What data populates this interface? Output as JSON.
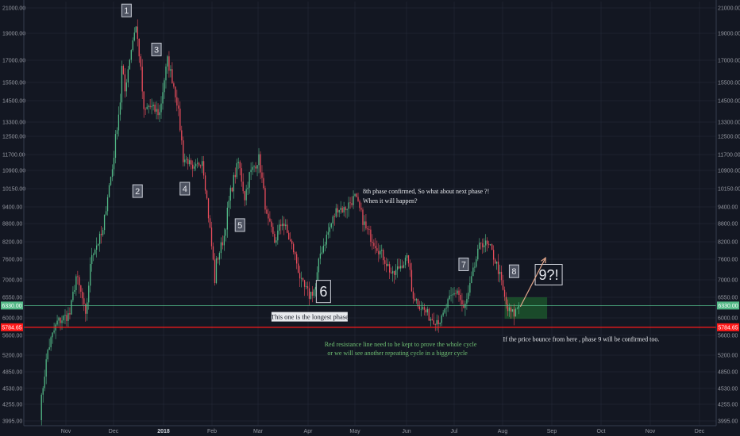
{
  "chart_data": {
    "type": "candlestick",
    "y_ticks": [
      "21000.00",
      "19000.00",
      "17000.00",
      "15500.00",
      "14500.00",
      "13300.00",
      "12500.00",
      "11700.00",
      "10900.00",
      "10150.00",
      "9400.00",
      "8800.00",
      "8200.00",
      "7600.00",
      "7000.00",
      "6550.00",
      "6000.00",
      "5600.00",
      "5200.00",
      "4850.00",
      "4530.00",
      "4255.00",
      "3995.00"
    ],
    "x_ticks": [
      {
        "label": "Nov",
        "bold": false
      },
      {
        "label": "Dec",
        "bold": false
      },
      {
        "label": "2018",
        "bold": true
      },
      {
        "label": "Feb",
        "bold": false
      },
      {
        "label": "Mar",
        "bold": false
      },
      {
        "label": "Apr",
        "bold": false
      },
      {
        "label": "May",
        "bold": false
      },
      {
        "label": "Jun",
        "bold": false
      },
      {
        "label": "Jul",
        "bold": false
      },
      {
        "label": "Aug",
        "bold": false
      },
      {
        "label": "Sep",
        "bold": false
      },
      {
        "label": "Oct",
        "bold": false
      },
      {
        "label": "Nov",
        "bold": false
      },
      {
        "label": "Dec",
        "bold": false
      }
    ],
    "price_line": {
      "value": 6330,
      "label": "6330.00",
      "color": "#53b987"
    },
    "resistance_line": {
      "value": 5784.65,
      "label": "5784.65",
      "color": "#ff1a1a"
    },
    "up_color": "#53b987",
    "down_color": "#eb4d5c",
    "anchors": [
      [
        "2017-10-17",
        4100
      ],
      [
        "2017-10-22",
        5300
      ],
      [
        "2017-10-28",
        5900
      ],
      [
        "2017-11-05",
        6100
      ],
      [
        "2017-11-09",
        7100
      ],
      [
        "2017-11-13",
        6500
      ],
      [
        "2017-11-15",
        6000
      ],
      [
        "2017-11-19",
        7800
      ],
      [
        "2017-11-26",
        8500
      ],
      [
        "2017-11-29",
        9900
      ],
      [
        "2017-12-02",
        11000
      ],
      [
        "2017-12-07",
        14500
      ],
      [
        "2017-12-08",
        16500
      ],
      [
        "2017-12-10",
        15000
      ],
      [
        "2017-12-13",
        17200
      ],
      [
        "2017-12-16",
        19200
      ],
      [
        "2017-12-17",
        19500
      ],
      [
        "2017-12-19",
        17500
      ],
      [
        "2017-12-22",
        13800
      ],
      [
        "2017-12-25",
        14200
      ],
      [
        "2017-12-28",
        14000
      ],
      [
        "2018-01-01",
        13800
      ],
      [
        "2018-01-06",
        17000
      ],
      [
        "2018-01-12",
        14500
      ],
      [
        "2018-01-16",
        11500
      ],
      [
        "2018-01-19",
        11400
      ],
      [
        "2018-01-22",
        10800
      ],
      [
        "2018-01-28",
        11500
      ],
      [
        "2018-02-01",
        9100
      ],
      [
        "2018-02-05",
        7000
      ],
      [
        "2018-02-06",
        7500
      ],
      [
        "2018-02-11",
        8400
      ],
      [
        "2018-02-15",
        10000
      ],
      [
        "2018-02-20",
        11300
      ],
      [
        "2018-02-24",
        9800
      ],
      [
        "2018-02-27",
        10700
      ],
      [
        "2018-03-05",
        11500
      ],
      [
        "2018-03-10",
        9000
      ],
      [
        "2018-03-15",
        8200
      ],
      [
        "2018-03-20",
        8900
      ],
      [
        "2018-03-27",
        7900
      ],
      [
        "2018-04-01",
        6900
      ],
      [
        "2018-04-06",
        6600
      ],
      [
        "2018-04-10",
        6800
      ],
      [
        "2018-04-13",
        7800
      ],
      [
        "2018-04-20",
        8800
      ],
      [
        "2018-04-24",
        9400
      ],
      [
        "2018-04-28",
        9300
      ],
      [
        "2018-05-05",
        9800
      ],
      [
        "2018-05-12",
        8600
      ],
      [
        "2018-05-16",
        8300
      ],
      [
        "2018-05-25",
        7500
      ],
      [
        "2018-05-29",
        7100
      ],
      [
        "2018-06-04",
        7500
      ],
      [
        "2018-06-08",
        7600
      ],
      [
        "2018-06-10",
        6700
      ],
      [
        "2018-06-14",
        6400
      ],
      [
        "2018-06-22",
        6000
      ],
      [
        "2018-06-29",
        5950
      ],
      [
        "2018-07-03",
        6400
      ],
      [
        "2018-07-09",
        6750
      ],
      [
        "2018-07-13",
        6200
      ],
      [
        "2018-07-16",
        6600
      ],
      [
        "2018-07-20",
        7400
      ],
      [
        "2018-07-24",
        8200
      ],
      [
        "2018-07-27",
        8100
      ],
      [
        "2018-07-30",
        7950
      ],
      [
        "2018-08-04",
        7300
      ],
      [
        "2018-08-08",
        6500
      ],
      [
        "2018-08-10",
        6200
      ],
      [
        "2018-08-14",
        6100
      ],
      [
        "2018-08-17",
        6350
      ]
    ],
    "annotations": {
      "labels": [
        {
          "text": "1",
          "date": "2017-12-11",
          "price": 20800,
          "size": "normal"
        },
        {
          "text": "2",
          "date": "2017-12-18",
          "price": 10050,
          "size": "normal"
        },
        {
          "text": "3",
          "date": "2017-12-30",
          "price": 17800,
          "size": "normal"
        },
        {
          "text": "4",
          "date": "2018-01-17",
          "price": 10150,
          "size": "normal"
        },
        {
          "text": "5",
          "date": "2018-02-21",
          "price": 8750,
          "size": "normal"
        },
        {
          "text": "6",
          "date": "2018-04-15",
          "price": 6700,
          "size": "large"
        },
        {
          "text": "7",
          "date": "2018-07-13",
          "price": 7450,
          "size": "normal"
        },
        {
          "text": "8",
          "date": "2018-08-14",
          "price": 7250,
          "size": "normal"
        },
        {
          "text": "9?!",
          "date": "2018-09-05",
          "price": 7150,
          "size": "big"
        }
      ],
      "longest_phase": "This one is the longest phase",
      "phase8_line1": "8th phase confirmed, So what about next phase ?!",
      "phase8_line2": "When it will happen?",
      "bounce_note": "If the price bounce from here , phase 9 will be confirmed too.",
      "red_note_line1": "Red resistance line need to be kept to prove the whole cycle",
      "red_note_line2": "or we will see another repeating cycle in a bigger cycle"
    }
  }
}
